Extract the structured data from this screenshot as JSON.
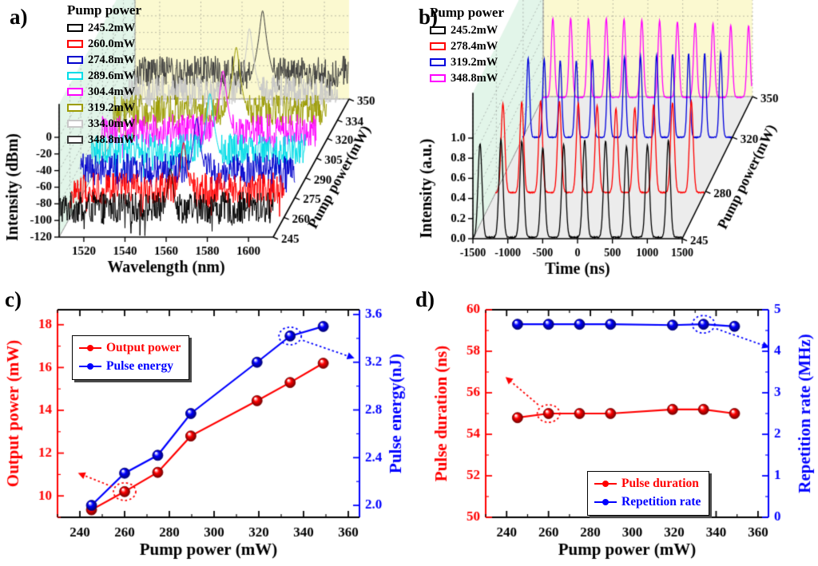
{
  "figure": {
    "background": "#ffffff"
  },
  "panels": {
    "a": {
      "letter": "a)",
      "legend_title": "Pump power",
      "legend": [
        {
          "label": "245.2mW",
          "color": "#000000"
        },
        {
          "label": "260.0mW",
          "color": "#ff0000"
        },
        {
          "label": "274.8mW",
          "color": "#0000cd"
        },
        {
          "label": "289.6mW",
          "color": "#00dde8"
        },
        {
          "label": "304.4mW",
          "color": "#ff00ff"
        },
        {
          "label": "319.2mW",
          "color": "#9c9c00"
        },
        {
          "label": "334.0mW",
          "color": "#c8c8c8"
        },
        {
          "label": "348.8mW",
          "color": "#3c3c3c"
        }
      ]
    },
    "b": {
      "letter": "b)",
      "legend_title": "Pump power",
      "legend": [
        {
          "label": "245.2mW",
          "color": "#000000"
        },
        {
          "label": "278.4mW",
          "color": "#ff0000"
        },
        {
          "label": "319.2mW",
          "color": "#0000dd"
        },
        {
          "label": "348.8mW",
          "color": "#ff00ff"
        }
      ]
    },
    "c": {
      "letter": "c)",
      "legend": [
        {
          "label": "Output power",
          "color": "#ff0000"
        },
        {
          "label": "Pulse energy",
          "color": "#0000ff"
        }
      ]
    },
    "d": {
      "letter": "d)",
      "legend": [
        {
          "label": "Pulse duration",
          "color": "#ff0000"
        },
        {
          "label": "Repetition rate",
          "color": "#0000ff"
        }
      ]
    }
  },
  "chart_data": [
    {
      "id": "a",
      "type": "3d-waterfall-line",
      "xlabel": "Wavelength (nm)",
      "ylabel": "Intensity (dBm)",
      "zlabel": "Pump power(mW)",
      "xlim": [
        1508,
        1612
      ],
      "x_ticks": [
        1520,
        1540,
        1560,
        1580,
        1600
      ],
      "ylim": [
        -120,
        0
      ],
      "y_ticks": [
        0,
        -20,
        -40,
        -60,
        -80,
        -100,
        -120
      ],
      "zlim": [
        245,
        350
      ],
      "z_ticks": [
        245,
        260,
        275,
        290,
        305,
        320,
        334,
        350
      ],
      "wall_left_color": "#e2f5e9",
      "wall_back_color": "#fbf9d0",
      "series": [
        {
          "name": "245.2mW",
          "pump_mW": 245.2,
          "color": "#000000",
          "peak_nm": 1562.0,
          "peak_dBm": -38,
          "noise_floor_dBm": -85
        },
        {
          "name": "260.0mW",
          "pump_mW": 260.0,
          "color": "#ff0000",
          "peak_nm": 1563.2,
          "peak_dBm": -30,
          "noise_floor_dBm": -85
        },
        {
          "name": "274.8mW",
          "pump_mW": 274.8,
          "color": "#0000cd",
          "peak_nm": 1564.4,
          "peak_dBm": -24,
          "noise_floor_dBm": -85
        },
        {
          "name": "289.6mW",
          "pump_mW": 289.6,
          "color": "#00dde8",
          "peak_nm": 1565.6,
          "peak_dBm": -18,
          "noise_floor_dBm": -85
        },
        {
          "name": "304.4mW",
          "pump_mW": 304.4,
          "color": "#ff00ff",
          "peak_nm": 1566.8,
          "peak_dBm": -14,
          "noise_floor_dBm": -85
        },
        {
          "name": "319.2mW",
          "pump_mW": 319.2,
          "color": "#9c9c00",
          "peak_nm": 1568.0,
          "peak_dBm": -9,
          "noise_floor_dBm": -85
        },
        {
          "name": "334.0mW",
          "pump_mW": 334.0,
          "color": "#c8c8c8",
          "peak_nm": 1569.2,
          "peak_dBm": -10,
          "noise_floor_dBm": -85
        },
        {
          "name": "348.8mW",
          "pump_mW": 348.8,
          "color": "#3c3c3c",
          "peak_nm": 1570.4,
          "peak_dBm": -12,
          "noise_floor_dBm": -85
        }
      ]
    },
    {
      "id": "b",
      "type": "3d-waterfall-line",
      "xlabel": "Time (ns)",
      "ylabel": "Intensity (a.u.)",
      "zlabel": "Pump power(mW)",
      "xlim": [
        -1500,
        1500
      ],
      "x_ticks": [
        -1500,
        -1000,
        -500,
        0,
        500,
        1000,
        1500
      ],
      "ylim": [
        0,
        1
      ],
      "y_ticks": [
        0,
        0.2,
        0.4,
        0.6,
        0.8,
        1
      ],
      "y_tick_labels": [
        "0.0",
        "0.2",
        "0.4",
        "0.6",
        "0.8",
        "1.0"
      ],
      "zlim": [
        245,
        350
      ],
      "z_ticks": [
        245,
        280,
        320,
        350
      ],
      "wall_left_color": "#e2f5e9",
      "wall_back_color": "#fbf9d0",
      "floor_color": "#ececec",
      "series": [
        {
          "name": "245.2mW",
          "pump_mW": 245.2,
          "color": "#000000",
          "period_ns": 300,
          "first_peak_ns": -1400,
          "sigma_ns": 40,
          "amplitude": 0.97
        },
        {
          "name": "278.4mW",
          "pump_mW": 278.4,
          "color": "#ff0000",
          "period_ns": 270,
          "first_peak_ns": -1390,
          "sigma_ns": 38,
          "amplitude": 0.97
        },
        {
          "name": "319.2mW",
          "pump_mW": 319.2,
          "color": "#0000dd",
          "period_ns": 230,
          "first_peak_ns": -1420,
          "sigma_ns": 30,
          "amplitude": 0.98
        },
        {
          "name": "348.8mW",
          "pump_mW": 348.8,
          "color": "#ff00ff",
          "period_ns": 255,
          "first_peak_ns": -1350,
          "sigma_ns": 33,
          "amplitude": 0.98
        }
      ]
    },
    {
      "id": "c",
      "type": "line-scatter-dual-axis",
      "xlabel": "Pump power (mW)",
      "xlim": [
        230,
        365
      ],
      "x_ticks": [
        240,
        260,
        280,
        300,
        320,
        340,
        360
      ],
      "left_axis": {
        "title": "Output power (mW)",
        "color": "#ff0000",
        "lim": [
          9,
          18.7
        ],
        "ticks": [
          10,
          12,
          14,
          16,
          18
        ]
      },
      "right_axis": {
        "title": "Pulse energy(nJ)",
        "color": "#0000ff",
        "lim": [
          1.9,
          3.64
        ],
        "ticks": [
          2.0,
          2.4,
          2.8,
          3.2,
          3.6
        ],
        "tick_labels": [
          "2.0",
          "2.4",
          "2.8",
          "3.2",
          "3.6"
        ]
      },
      "x": [
        245.2,
        260.0,
        274.8,
        289.6,
        319.2,
        334.0,
        348.8
      ],
      "series": [
        {
          "name": "Output power",
          "axis": "left",
          "color": "#ff0000",
          "values": [
            9.35,
            10.2,
            11.1,
            12.8,
            14.45,
            15.3,
            16.2
          ]
        },
        {
          "name": "Pulse energy",
          "axis": "right",
          "color": "#0000ff",
          "values": [
            2.0,
            2.27,
            2.42,
            2.77,
            3.2,
            3.42,
            3.5
          ]
        }
      ],
      "annotations": [
        {
          "shape": "dashed-ellipse-arrow",
          "series": "Output power",
          "x": 260,
          "color": "#ff0000",
          "arrow": "to-left-axis",
          "head": [
            -50,
            -20
          ]
        },
        {
          "shape": "dashed-ellipse-arrow",
          "series": "Pulse energy",
          "x": 334,
          "color": "#0000ff",
          "arrow": "to-right-axis",
          "head": [
            72,
            25
          ]
        }
      ]
    },
    {
      "id": "d",
      "type": "line-scatter-dual-axis",
      "xlabel": "Pump power (mW)",
      "xlim": [
        230,
        365
      ],
      "x_ticks": [
        240,
        260,
        280,
        300,
        320,
        340,
        360
      ],
      "left_axis": {
        "title": "Pulse duration (ns)",
        "color": "#ff0000",
        "lim": [
          50,
          60
        ],
        "ticks": [
          50,
          52,
          54,
          56,
          58,
          60
        ]
      },
      "right_axis": {
        "title": "Repetition rate (MHz)",
        "color": "#0000ff",
        "lim": [
          0,
          5
        ],
        "ticks": [
          0,
          1,
          2,
          3,
          4,
          5
        ]
      },
      "x": [
        245.2,
        260.0,
        274.8,
        289.6,
        319.2,
        334.0,
        348.8
      ],
      "series": [
        {
          "name": "Pulse duration",
          "axis": "left",
          "color": "#ff0000",
          "values": [
            54.8,
            55.0,
            55.0,
            55.0,
            55.2,
            55.2,
            55.0
          ]
        },
        {
          "name": "Repetition rate",
          "axis": "right",
          "color": "#0000ff",
          "values": [
            4.65,
            4.65,
            4.65,
            4.65,
            4.63,
            4.65,
            4.6
          ]
        }
      ],
      "annotations": [
        {
          "shape": "dashed-ellipse-arrow",
          "series": "Pulse duration",
          "x": 260,
          "color": "#ff0000",
          "arrow": "to-left-axis",
          "head": [
            -47,
            -40
          ]
        },
        {
          "shape": "dashed-ellipse-arrow",
          "series": "Repetition rate",
          "x": 334,
          "color": "#0000ff",
          "arrow": "to-right-axis",
          "head": [
            74,
            26
          ]
        }
      ]
    }
  ]
}
